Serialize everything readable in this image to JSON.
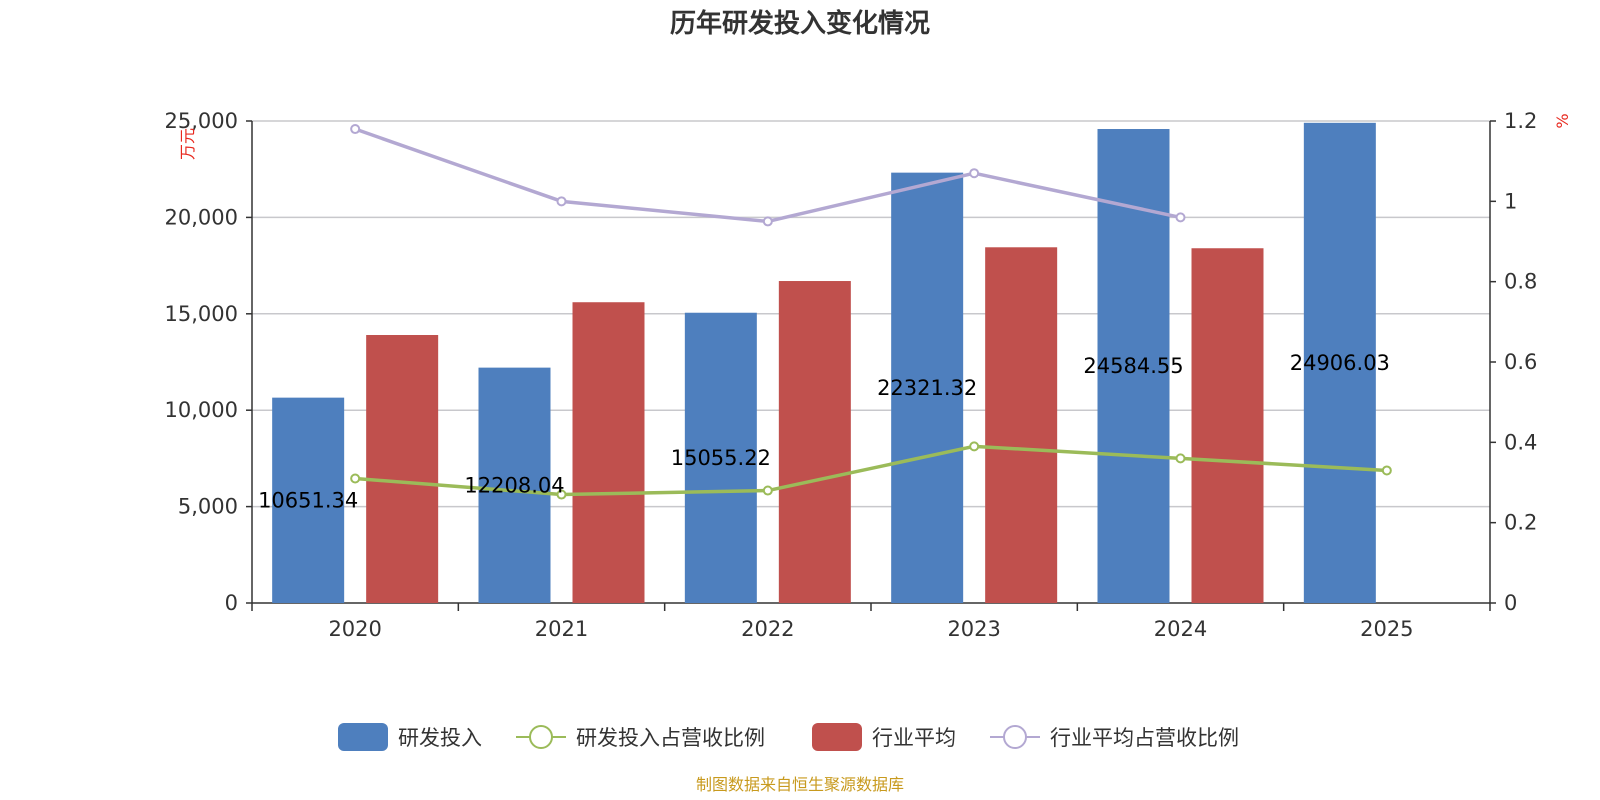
{
  "chart_data": {
    "type": "bar",
    "title": "历年研发投入变化情况",
    "categories": [
      "2020",
      "2021",
      "2022",
      "2023",
      "2024",
      "2025"
    ],
    "y_left": {
      "unit": "万元",
      "ylim": [
        0,
        25000
      ],
      "ticks": [
        0,
        5000,
        10000,
        15000,
        20000,
        25000
      ],
      "tick_labels": [
        "0",
        "5,000",
        "10,000",
        "15,000",
        "20,000",
        "25,000"
      ]
    },
    "y_right": {
      "unit": "%",
      "ylim": [
        0,
        1.2
      ],
      "ticks": [
        0,
        0.2,
        0.4,
        0.6,
        0.8,
        1,
        1.2
      ],
      "tick_labels": [
        "0",
        "0.2",
        "0.4",
        "0.6",
        "0.8",
        "1",
        "1.2"
      ]
    },
    "grid": true,
    "legend_position": "bottom",
    "series": [
      {
        "name": "研发投入",
        "kind": "bar",
        "axis": "left",
        "color": "#4e7fbe",
        "values": [
          10651.34,
          12208.04,
          15055.22,
          22321.32,
          24584.55,
          24906.03
        ],
        "data_labels": [
          "10651.34",
          "12208.04",
          "15055.22",
          "22321.32",
          "24584.55",
          "24906.03"
        ]
      },
      {
        "name": "研发投入占营收比例",
        "kind": "line",
        "axis": "right",
        "color": "#9bbb59",
        "values": [
          0.31,
          0.27,
          0.28,
          0.39,
          0.36,
          0.33
        ]
      },
      {
        "name": "行业平均",
        "kind": "bar",
        "axis": "left",
        "color": "#c0504d",
        "values": [
          13900,
          15600,
          16700,
          18450,
          18400,
          null
        ]
      },
      {
        "name": "行业平均占营收比例",
        "kind": "line",
        "axis": "right",
        "color": "#b3a8d2",
        "values": [
          1.18,
          1.0,
          0.95,
          1.07,
          0.96,
          null
        ]
      }
    ],
    "source": "制图数据来自恒生聚源数据库"
  }
}
